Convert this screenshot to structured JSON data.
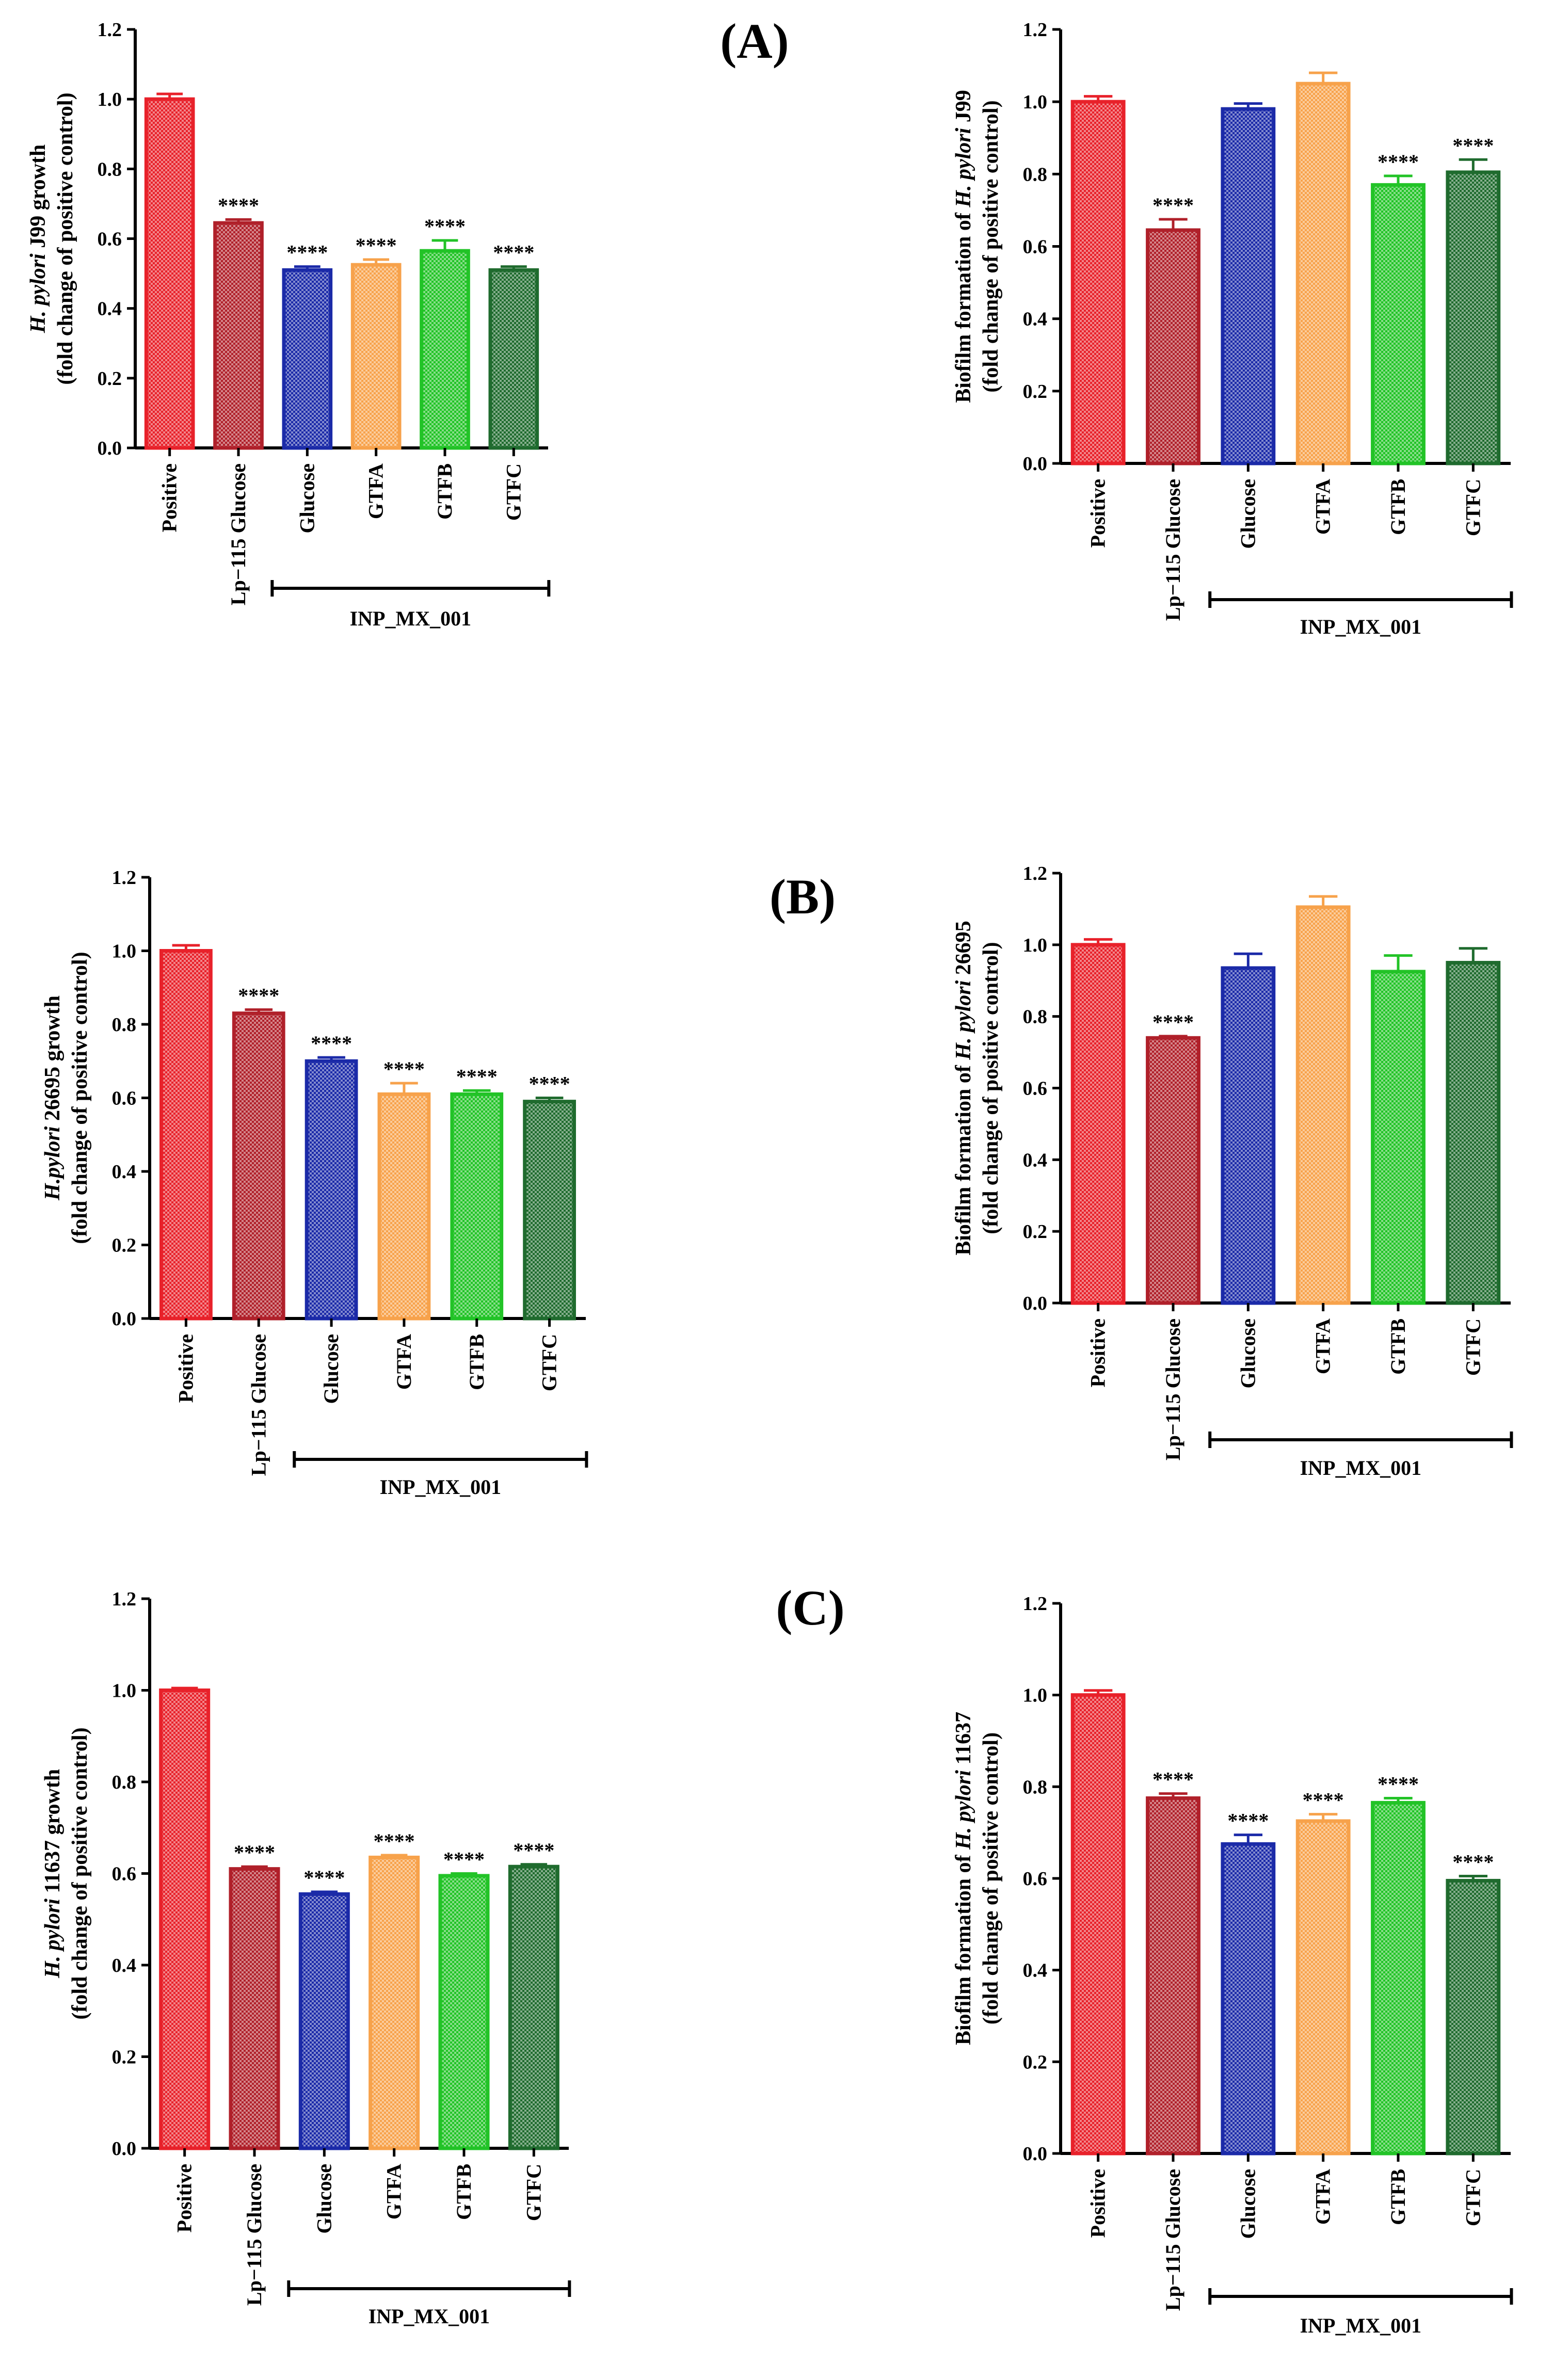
{
  "panel_labels": [
    "(A)",
    "(B)",
    "(C)"
  ],
  "group_label": "INP_MX_001",
  "colors": {
    "Positive": "#e8212a",
    "Lp-115 Glucose": "#b0202a",
    "Glucose": "#1b2aa8",
    "GTFA": "#f7a24b",
    "GTFB": "#22c327",
    "GTFC": "#1f6b2e"
  },
  "chart_data": [
    {
      "type": "bar",
      "panel": "(A)",
      "ylabel_line1_parts": [
        {
          "text": "H. pylori",
          "italic": true
        },
        {
          "text": " J99 growth",
          "italic": false
        }
      ],
      "ylabel_line2": "(fold change of positive control)",
      "categories": [
        "Positive",
        "Lp−115 Glucose",
        "Glucose",
        "GTFA",
        "GTFB",
        "GTFC"
      ],
      "values": [
        1.0,
        0.645,
        0.51,
        0.525,
        0.565,
        0.51
      ],
      "errors": [
        0.015,
        0.01,
        0.01,
        0.015,
        0.03,
        0.01
      ],
      "significance": [
        "",
        "****",
        "****",
        "****",
        "****",
        "****"
      ],
      "ylim": [
        0,
        1.2
      ],
      "yticks": [
        "0.0",
        "0.2",
        "0.4",
        "0.6",
        "0.8",
        "1.0",
        "1.2"
      ]
    },
    {
      "type": "bar",
      "panel": "(A)",
      "ylabel_line1_parts": [
        {
          "text": "Biofilm formation of ",
          "italic": false
        },
        {
          "text": "H. pylori",
          "italic": true
        },
        {
          "text": " J99",
          "italic": false
        }
      ],
      "ylabel_line2": "(fold change of positive control)",
      "categories": [
        "Positive",
        "Lp−115 Glucose",
        "Glucose",
        "GTFA",
        "GTFB",
        "GTFC"
      ],
      "values": [
        1.0,
        0.645,
        0.98,
        1.05,
        0.77,
        0.805
      ],
      "errors": [
        0.015,
        0.03,
        0.015,
        0.03,
        0.025,
        0.035
      ],
      "significance": [
        "",
        "****",
        "",
        "",
        "****",
        "****"
      ],
      "ylim": [
        0,
        1.2
      ],
      "yticks": [
        "0.0",
        "0.2",
        "0.4",
        "0.6",
        "0.8",
        "1.0",
        "1.2"
      ]
    },
    {
      "type": "bar",
      "panel": "(B)",
      "ylabel_line1_parts": [
        {
          "text": "H.pylori",
          "italic": true
        },
        {
          "text": " 26695 growth",
          "italic": false
        }
      ],
      "ylabel_line2": "(fold change of positive control)",
      "categories": [
        "Positive",
        "Lp−115 Glucose",
        "Glucose",
        "GTFA",
        "GTFB",
        "GTFC"
      ],
      "values": [
        1.0,
        0.83,
        0.7,
        0.61,
        0.61,
        0.59
      ],
      "errors": [
        0.015,
        0.01,
        0.01,
        0.03,
        0.01,
        0.01
      ],
      "significance": [
        "",
        "****",
        "****",
        "****",
        "****",
        "****"
      ],
      "ylim": [
        0,
        1.2
      ],
      "yticks": [
        "0.0",
        "0.2",
        "0.4",
        "0.6",
        "0.8",
        "1.0",
        "1.2"
      ]
    },
    {
      "type": "bar",
      "panel": "(B)",
      "ylabel_line1_parts": [
        {
          "text": "Biofilm formation of ",
          "italic": false
        },
        {
          "text": "H. pylori",
          "italic": true
        },
        {
          "text": " 26695",
          "italic": false
        }
      ],
      "ylabel_line2": "(fold change of positive control)",
      "categories": [
        "Positive",
        "Lp−115 Glucose",
        "Glucose",
        "GTFA",
        "GTFB",
        "GTFC"
      ],
      "values": [
        1.0,
        0.74,
        0.935,
        1.105,
        0.925,
        0.95
      ],
      "errors": [
        0.015,
        0.005,
        0.04,
        0.03,
        0.045,
        0.04
      ],
      "significance": [
        "",
        "****",
        "",
        "",
        "",
        ""
      ],
      "ylim": [
        0,
        1.2
      ],
      "yticks": [
        "0.0",
        "0.2",
        "0.4",
        "0.6",
        "0.8",
        "1.0",
        "1.2"
      ]
    },
    {
      "type": "bar",
      "panel": "(C)",
      "ylabel_line1_parts": [
        {
          "text": "H. pylori",
          "italic": true
        },
        {
          "text": " 11637 growth",
          "italic": false
        }
      ],
      "ylabel_line2": "(fold change of positive control)",
      "categories": [
        "Positive",
        "Lp−115 Glucose",
        "Glucose",
        "GTFA",
        "GTFB",
        "GTFC"
      ],
      "values": [
        1.0,
        0.61,
        0.555,
        0.635,
        0.595,
        0.615
      ],
      "errors": [
        0.005,
        0.005,
        0.005,
        0.005,
        0.005,
        0.005
      ],
      "significance": [
        "",
        "****",
        "****",
        "****",
        "****",
        "****"
      ],
      "ylim": [
        0,
        1.2
      ],
      "yticks": [
        "0.0",
        "0.2",
        "0.4",
        "0.6",
        "0.8",
        "1.0",
        "1.2"
      ]
    },
    {
      "type": "bar",
      "panel": "(C)",
      "ylabel_line1_parts": [
        {
          "text": "Biofilm formation of ",
          "italic": false
        },
        {
          "text": "H. pylori",
          "italic": true
        },
        {
          "text": " 11637",
          "italic": false
        }
      ],
      "ylabel_line2": "(fold change of positive control)",
      "categories": [
        "Positive",
        "Lp−115 Glucose",
        "Glucose",
        "GTFA",
        "GTFB",
        "GTFC"
      ],
      "values": [
        1.0,
        0.775,
        0.675,
        0.725,
        0.765,
        0.595
      ],
      "errors": [
        0.01,
        0.01,
        0.02,
        0.015,
        0.01,
        0.01
      ],
      "significance": [
        "",
        "****",
        "****",
        "****",
        "****",
        "****"
      ],
      "ylim": [
        0,
        1.2
      ],
      "yticks": [
        "0.0",
        "0.2",
        "0.4",
        "0.6",
        "0.8",
        "1.0",
        "1.2"
      ]
    }
  ]
}
